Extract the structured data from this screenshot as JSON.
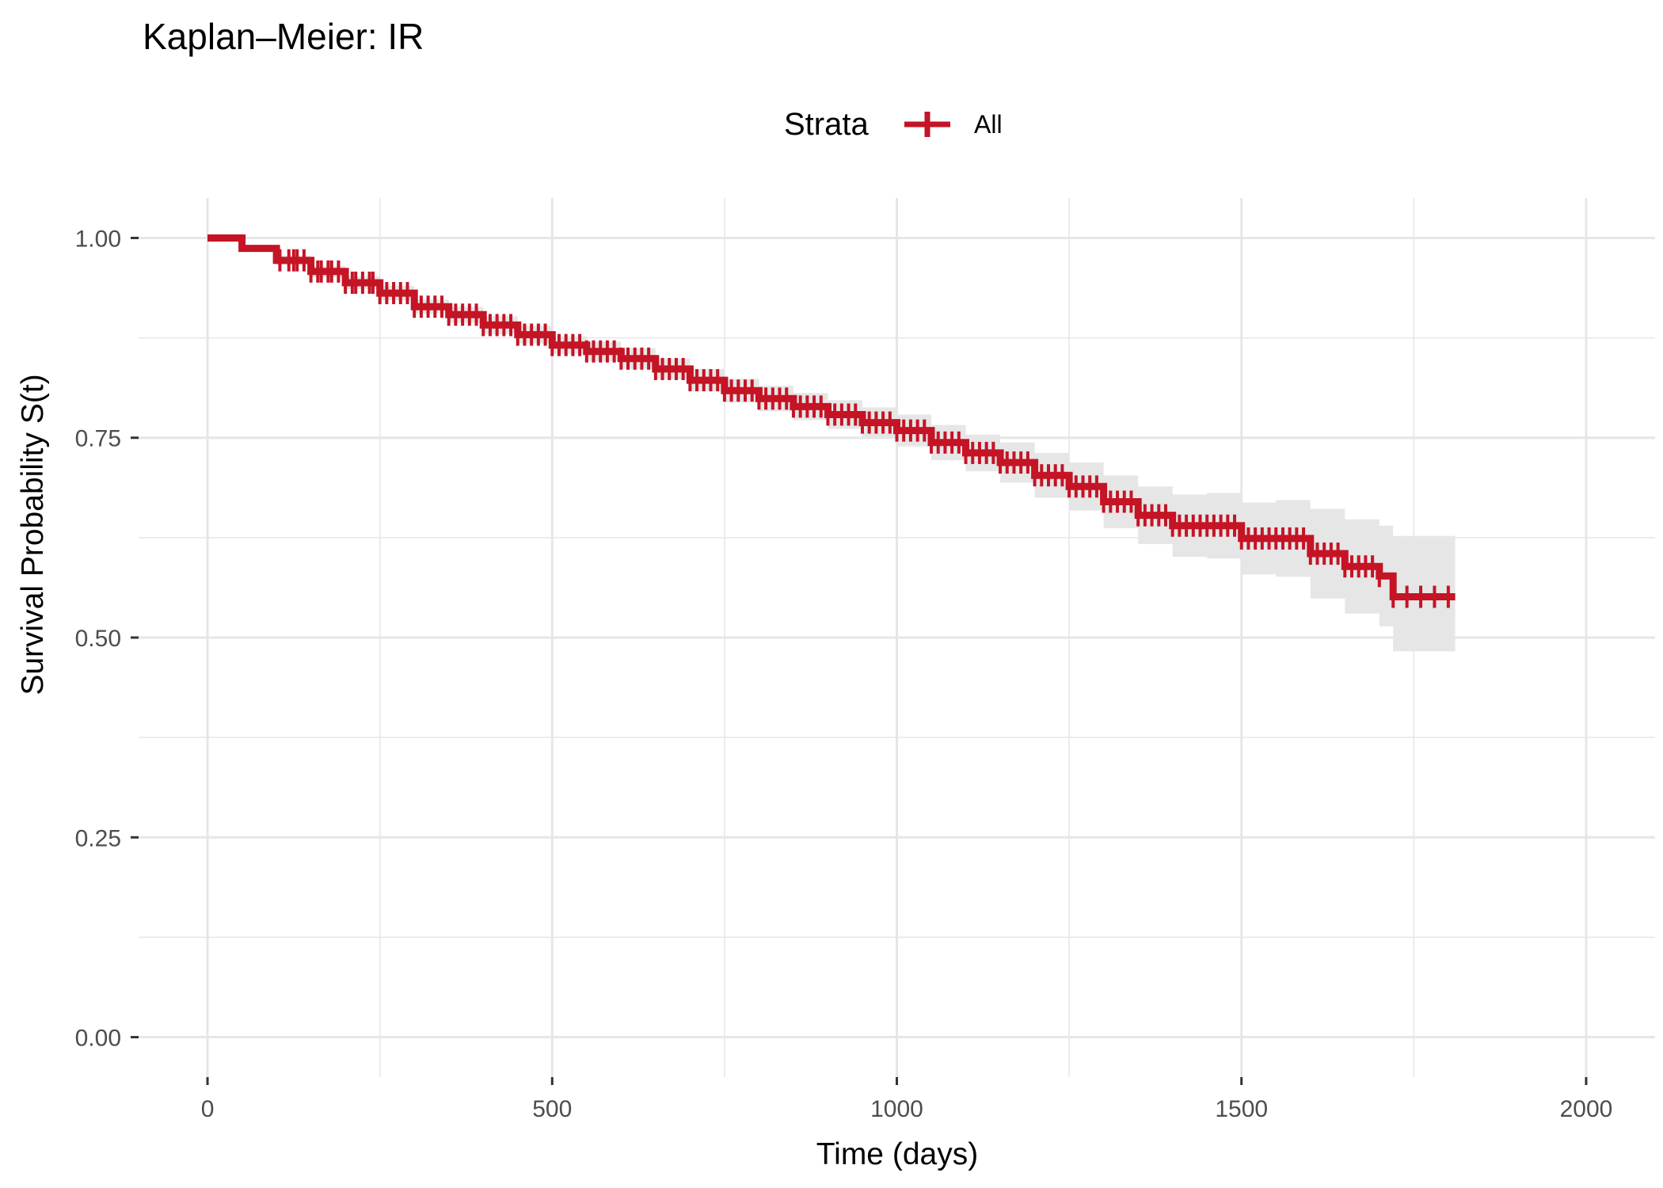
{
  "chart_data": {
    "type": "line",
    "title": "Kaplan–Meier: IR",
    "xlabel": "Time (days)",
    "ylabel": "Survival Probability S(t)",
    "xlim": [
      -100,
      2100
    ],
    "ylim": [
      -0.05,
      1.05
    ],
    "x_ticks": [
      0,
      500,
      1000,
      1500,
      2000
    ],
    "x_tick_labels": [
      "0",
      "500",
      "1000",
      "1500",
      "2000"
    ],
    "y_ticks": [
      0,
      0.25,
      0.5,
      0.75,
      1.0
    ],
    "y_tick_labels": [
      "0.00",
      "0.25",
      "0.50",
      "0.75",
      "1.00"
    ],
    "grid": true,
    "legend": {
      "title": "Strata",
      "position": "top",
      "entries": [
        "All"
      ]
    },
    "colors": {
      "line": "#c41425",
      "ci_band": "#e6e6e6",
      "grid": "#e6e6e6"
    },
    "series": [
      {
        "name": "All",
        "x": [
          0,
          50,
          100,
          150,
          200,
          250,
          300,
          350,
          400,
          450,
          500,
          550,
          600,
          650,
          700,
          750,
          800,
          850,
          900,
          950,
          1000,
          1050,
          1100,
          1150,
          1200,
          1250,
          1300,
          1350,
          1400,
          1450,
          1500,
          1550,
          1600,
          1650,
          1700,
          1720,
          1810
        ],
        "y": [
          1.0,
          0.987,
          0.972,
          0.958,
          0.944,
          0.931,
          0.914,
          0.904,
          0.891,
          0.879,
          0.866,
          0.858,
          0.849,
          0.836,
          0.822,
          0.809,
          0.799,
          0.789,
          0.779,
          0.769,
          0.759,
          0.744,
          0.731,
          0.719,
          0.703,
          0.689,
          0.67,
          0.653,
          0.64,
          0.64,
          0.624,
          0.624,
          0.605,
          0.589,
          0.577,
          0.551,
          0.551
        ],
        "ci_lower": [
          1.0,
          0.983,
          0.966,
          0.951,
          0.936,
          0.922,
          0.905,
          0.894,
          0.88,
          0.868,
          0.855,
          0.846,
          0.836,
          0.823,
          0.808,
          0.794,
          0.783,
          0.772,
          0.761,
          0.75,
          0.739,
          0.722,
          0.708,
          0.694,
          0.675,
          0.659,
          0.637,
          0.617,
          0.601,
          0.599,
          0.579,
          0.576,
          0.549,
          0.53,
          0.514,
          0.483,
          0.483
        ],
        "ci_upper": [
          1.0,
          0.991,
          0.978,
          0.965,
          0.952,
          0.94,
          0.923,
          0.914,
          0.902,
          0.89,
          0.877,
          0.87,
          0.862,
          0.849,
          0.836,
          0.824,
          0.815,
          0.806,
          0.797,
          0.788,
          0.779,
          0.766,
          0.754,
          0.744,
          0.731,
          0.719,
          0.703,
          0.689,
          0.679,
          0.681,
          0.669,
          0.672,
          0.661,
          0.648,
          0.64,
          0.627,
          0.627
        ],
        "censor_times": [
          105,
          118,
          125,
          130,
          140,
          150,
          160,
          165,
          175,
          180,
          190,
          200,
          210,
          215,
          225,
          235,
          240,
          250,
          260,
          270,
          280,
          290,
          300,
          310,
          320,
          330,
          340,
          350,
          360,
          370,
          380,
          390,
          400,
          410,
          420,
          430,
          440,
          450,
          460,
          470,
          480,
          490,
          500,
          510,
          520,
          530,
          540,
          550,
          560,
          570,
          580,
          590,
          600,
          610,
          620,
          630,
          640,
          650,
          660,
          670,
          680,
          690,
          700,
          710,
          720,
          730,
          740,
          750,
          760,
          770,
          780,
          790,
          800,
          810,
          820,
          830,
          840,
          850,
          860,
          870,
          880,
          890,
          900,
          910,
          920,
          930,
          940,
          950,
          960,
          970,
          980,
          990,
          1000,
          1010,
          1020,
          1030,
          1040,
          1050,
          1060,
          1070,
          1080,
          1090,
          1100,
          1110,
          1120,
          1130,
          1140,
          1150,
          1160,
          1170,
          1180,
          1190,
          1200,
          1210,
          1220,
          1230,
          1240,
          1250,
          1260,
          1270,
          1280,
          1290,
          1300,
          1310,
          1320,
          1330,
          1340,
          1350,
          1360,
          1370,
          1380,
          1390,
          1400,
          1410,
          1420,
          1430,
          1440,
          1450,
          1460,
          1470,
          1480,
          1490,
          1500,
          1510,
          1520,
          1530,
          1540,
          1550,
          1560,
          1570,
          1580,
          1590,
          1600,
          1610,
          1620,
          1630,
          1640,
          1650,
          1660,
          1670,
          1680,
          1690,
          1700,
          1720,
          1740,
          1760,
          1780,
          1800
        ]
      }
    ]
  }
}
